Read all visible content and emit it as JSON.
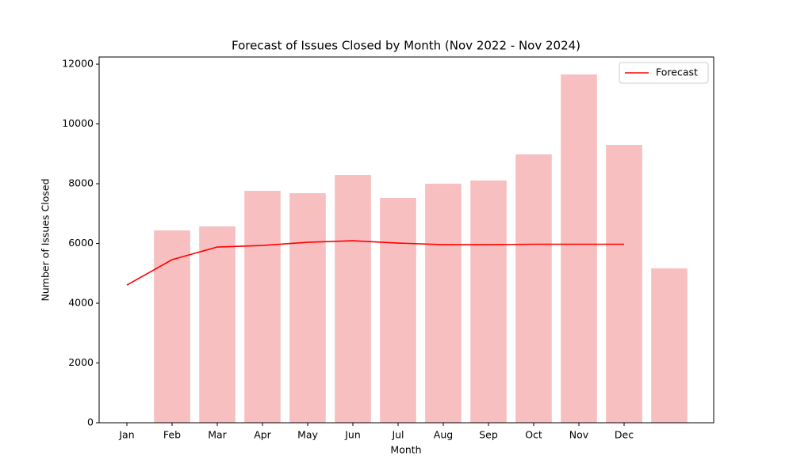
{
  "chart_data": {
    "type": "bar",
    "title": "Forecast of Issues Closed by Month (Nov 2022 - Nov 2024)",
    "x_label": "Month",
    "y_label": "Number of Issues Closed",
    "categories": [
      "Jan",
      "Feb",
      "Mar",
      "Apr",
      "May",
      "Jun",
      "Jul",
      "Aug",
      "Sep",
      "Oct",
      "Nov",
      "Dec",
      null
    ],
    "series": [
      {
        "type": "bar",
        "color": "#f7bfc0",
        "values": [
          null,
          6437,
          6570,
          7762,
          7682,
          8291,
          7523,
          8000,
          8106,
          8980,
          11656,
          9298,
          5166
        ]
      },
      {
        "type": "line",
        "name": "Forecast",
        "color": "#ff0000",
        "values": [
          4609,
          5457,
          5881,
          5934,
          6040,
          6093,
          6013,
          5960,
          5960,
          5974,
          5974,
          5974,
          null
        ]
      }
    ],
    "ylim": [
      0,
      12240
    ],
    "yticks": [
      0,
      2000,
      4000,
      6000,
      8000,
      10000,
      12000
    ],
    "legend": "upper right"
  }
}
